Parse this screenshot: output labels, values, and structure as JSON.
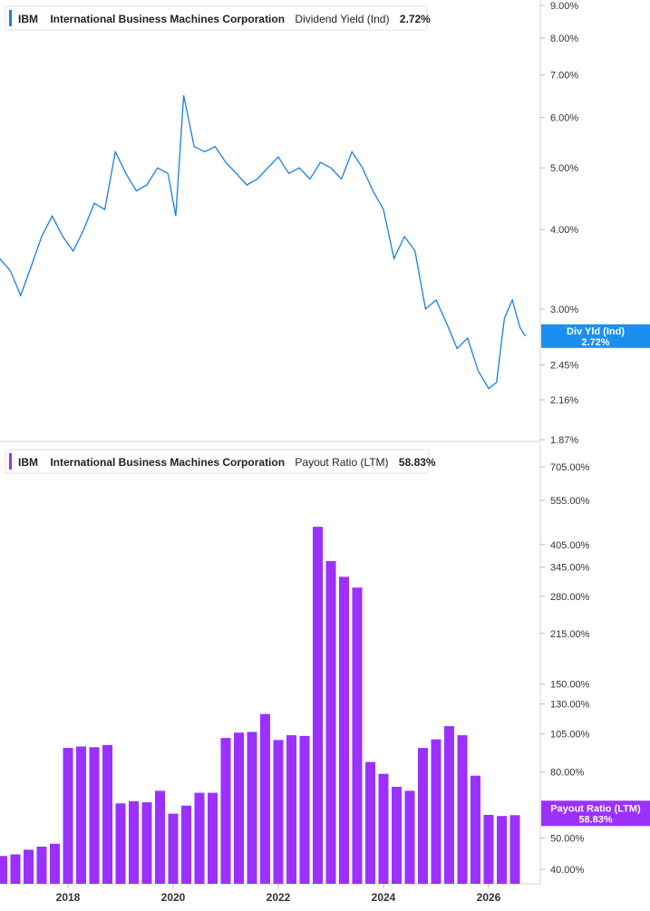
{
  "chart_data": [
    {
      "type": "line",
      "legend": {
        "ticker": "IBM",
        "company": "International Business Machines Corporation",
        "metric": "Dividend Yield (Ind)",
        "value": "2.72%"
      },
      "color": "#1a7fe0",
      "y_scale": "log",
      "ylim": [
        1.87,
        9.0
      ],
      "y_ticks": [
        "9.00%",
        "8.00%",
        "7.00%",
        "6.00%",
        "5.00%",
        "4.00%",
        "3.00%",
        "2.45%",
        "2.16%",
        "1.87%"
      ],
      "y_tick_values": [
        9.0,
        8.0,
        7.0,
        6.0,
        5.0,
        4.0,
        3.0,
        2.45,
        2.16,
        1.87
      ],
      "badge": {
        "label": "Div Yld (Ind)",
        "value": "2.72%",
        "y_value": 2.72
      },
      "x": [
        2016.7,
        2016.9,
        2017.1,
        2017.3,
        2017.5,
        2017.7,
        2017.9,
        2018.1,
        2018.3,
        2018.5,
        2018.7,
        2018.9,
        2019.1,
        2019.3,
        2019.5,
        2019.7,
        2019.9,
        2020.05,
        2020.2,
        2020.4,
        2020.6,
        2020.8,
        2021.0,
        2021.2,
        2021.4,
        2021.6,
        2021.8,
        2022.0,
        2022.2,
        2022.4,
        2022.6,
        2022.8,
        2023.0,
        2023.2,
        2023.4,
        2023.6,
        2023.8,
        2024.0,
        2024.2,
        2024.4,
        2024.6,
        2024.8,
        2025.0,
        2025.2,
        2025.4,
        2025.6,
        2025.8,
        2026.0,
        2026.15,
        2026.3,
        2026.45,
        2026.6,
        2026.7
      ],
      "y": [
        3.6,
        3.45,
        3.15,
        3.5,
        3.9,
        4.2,
        3.9,
        3.7,
        4.0,
        4.4,
        4.3,
        5.3,
        4.9,
        4.6,
        4.7,
        5.0,
        4.9,
        4.2,
        6.5,
        5.4,
        5.3,
        5.4,
        5.1,
        4.9,
        4.7,
        4.8,
        5.0,
        5.2,
        4.9,
        5.0,
        4.8,
        5.1,
        5.0,
        4.8,
        5.3,
        5.0,
        4.6,
        4.3,
        3.6,
        3.9,
        3.7,
        3.0,
        3.1,
        2.85,
        2.6,
        2.7,
        2.4,
        2.25,
        2.3,
        2.9,
        3.1,
        2.8,
        2.72
      ]
    },
    {
      "type": "bar",
      "legend": {
        "ticker": "IBM",
        "company": "International Business Machines Corporation",
        "metric": "Payout Ratio (LTM)",
        "value": "58.83%"
      },
      "color": "#9b30ff",
      "y_scale": "log",
      "ylim": [
        37,
        800
      ],
      "y_ticks": [
        "705.00%",
        "555.00%",
        "405.00%",
        "345.00%",
        "280.00%",
        "215.00%",
        "150.00%",
        "130.00%",
        "105.00%",
        "80.00%",
        "50.00%",
        "40.00%"
      ],
      "y_tick_values": [
        705,
        555,
        405,
        345,
        280,
        215,
        150,
        130,
        105,
        80,
        50,
        40
      ],
      "badge": {
        "label": "Payout Ratio (LTM)",
        "value": "58.83%",
        "y_value": 58.83
      },
      "x": [
        2016.75,
        2017.0,
        2017.25,
        2017.5,
        2017.75,
        2018.0,
        2018.25,
        2018.5,
        2018.75,
        2019.0,
        2019.25,
        2019.5,
        2019.75,
        2020.0,
        2020.25,
        2020.5,
        2020.75,
        2021.0,
        2021.25,
        2021.5,
        2021.75,
        2022.0,
        2022.25,
        2022.5,
        2022.75,
        2023.0,
        2023.25,
        2023.5,
        2023.75,
        2024.0,
        2024.25,
        2024.5,
        2024.75,
        2025.0,
        2025.25,
        2025.5,
        2025.75,
        2026.0,
        2026.25,
        2026.5
      ],
      "values": [
        44,
        44.5,
        46,
        47,
        48,
        95,
        96,
        95.5,
        97,
        64,
        65,
        64.5,
        70,
        59.5,
        63,
        69,
        69,
        102,
        106,
        106.5,
        121,
        100.5,
        104,
        103.5,
        460,
        360,
        322,
        298,
        86,
        79,
        72,
        70,
        95,
        101,
        111,
        104,
        78,
        59,
        58.5,
        58.83
      ]
    }
  ],
  "x_axis": {
    "ticks": [
      "2018",
      "2020",
      "2022",
      "2024",
      "2026"
    ],
    "tick_values": [
      2018,
      2020,
      2022,
      2024,
      2026
    ]
  }
}
